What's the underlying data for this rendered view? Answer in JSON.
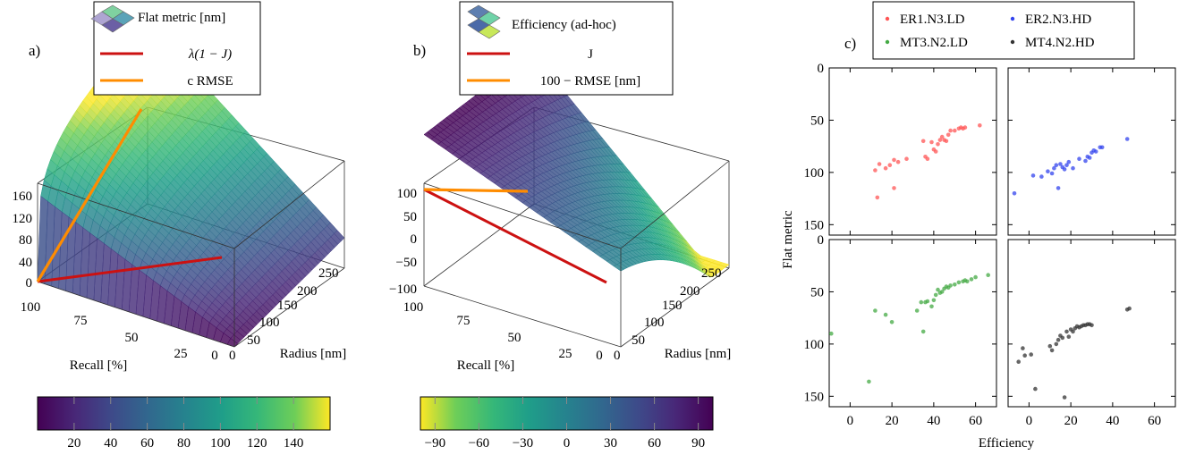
{
  "chart_data": [
    {
      "type": "surface3d",
      "panel_label": "a)",
      "xlabel": "Recall [%]",
      "ylabel": "Radius [nm]",
      "x_ticks": [
        "100",
        "75",
        "50",
        "25",
        "0"
      ],
      "y_ticks": [
        "0",
        "50",
        "100",
        "150",
        "200",
        "250"
      ],
      "z_ticks": [
        "0",
        "40",
        "80",
        "120",
        "160"
      ],
      "x_range": [
        0,
        100
      ],
      "y_range": [
        0,
        280
      ],
      "z_range": [
        0,
        190
      ],
      "legend": [
        {
          "label": "Flat metric [nm]",
          "kind": "surface"
        },
        {
          "label": "λ(1 − J)",
          "kind": "line",
          "color": "#cc1111"
        },
        {
          "label": "c RMSE",
          "kind": "line",
          "color": "#ff8c00"
        }
      ],
      "colorbar": {
        "colormap": "viridis",
        "ticks": [
          "20",
          "40",
          "60",
          "80",
          "100",
          "120",
          "140"
        ],
        "range": [
          0,
          160
        ]
      }
    },
    {
      "type": "surface3d",
      "panel_label": "b)",
      "xlabel": "Recall [%]",
      "ylabel": "Radius [nm]",
      "x_ticks": [
        "100",
        "75",
        "50",
        "25",
        "0"
      ],
      "y_ticks": [
        "0",
        "50",
        "100",
        "150",
        "200",
        "250"
      ],
      "z_ticks": [
        "−100",
        "−50",
        "0",
        "50",
        "100"
      ],
      "x_range": [
        0,
        100
      ],
      "y_range": [
        0,
        280
      ],
      "z_range": [
        -100,
        110
      ],
      "legend": [
        {
          "label": "Efficiency (ad-hoc)",
          "kind": "surface"
        },
        {
          "label": "J",
          "kind": "line",
          "color": "#cc1111"
        },
        {
          "label": "100 − RMSE [nm]",
          "kind": "line",
          "color": "#ff8c00"
        }
      ],
      "colorbar": {
        "colormap": "viridis_r",
        "ticks": [
          "−90",
          "−60",
          "−30",
          "0",
          "30",
          "60",
          "90"
        ],
        "range": [
          -100,
          100
        ]
      }
    },
    {
      "type": "scatter",
      "panel_label": "c)",
      "xlabel": "Efficiency",
      "ylabel": "Flat metric",
      "x_ticks": [
        "0",
        "20",
        "40",
        "60"
      ],
      "y_ticks": [
        "0",
        "50",
        "100",
        "150"
      ],
      "xlim": [
        -10,
        70
      ],
      "ylim": [
        160,
        0
      ],
      "series": [
        {
          "name": "ER1.N3.LD",
          "color": "#ff5555",
          "points": [
            [
              12,
              98
            ],
            [
              14,
              92
            ],
            [
              17,
              96
            ],
            [
              19,
              93
            ],
            [
              21,
              88
            ],
            [
              23,
              90
            ],
            [
              27,
              87
            ],
            [
              13,
              124
            ],
            [
              21,
              115
            ],
            [
              35,
              70
            ],
            [
              39,
              71
            ],
            [
              36,
              85
            ],
            [
              41,
              80
            ],
            [
              42,
              73
            ],
            [
              43,
              69
            ],
            [
              44,
              66
            ],
            [
              45,
              69
            ],
            [
              46,
              70
            ],
            [
              47,
              64
            ],
            [
              48,
              60
            ],
            [
              50,
              60
            ],
            [
              52,
              58
            ],
            [
              53,
              57
            ],
            [
              54,
              58
            ],
            [
              55,
              57
            ],
            [
              37,
              87
            ],
            [
              40,
              78
            ],
            [
              62,
              55
            ]
          ]
        },
        {
          "name": "ER2.N3.HD",
          "color": "#3344ee",
          "points": [
            [
              -7,
              120
            ],
            [
              2,
              103
            ],
            [
              6,
              104
            ],
            [
              9,
              99
            ],
            [
              12,
              96
            ],
            [
              13,
              93
            ],
            [
              14,
              115
            ],
            [
              15,
              92
            ],
            [
              17,
              97
            ],
            [
              18,
              93
            ],
            [
              19,
              90
            ],
            [
              21,
              96
            ],
            [
              24,
              87
            ],
            [
              27,
              89
            ],
            [
              28,
              85
            ],
            [
              29,
              86
            ],
            [
              30,
              81
            ],
            [
              31,
              79
            ],
            [
              32,
              80
            ],
            [
              34,
              76
            ],
            [
              35,
              76
            ],
            [
              47,
              68
            ],
            [
              11,
              101
            ],
            [
              16,
              95
            ]
          ]
        },
        {
          "name": "MT3.N2.LD",
          "color": "#44aa44",
          "points": [
            [
              -9,
              90
            ],
            [
              9,
              136
            ],
            [
              12,
              68
            ],
            [
              17,
              72
            ],
            [
              20,
              79
            ],
            [
              32,
              68
            ],
            [
              34,
              60
            ],
            [
              35,
              88
            ],
            [
              36,
              60
            ],
            [
              37,
              59
            ],
            [
              39,
              64
            ],
            [
              40,
              58
            ],
            [
              41,
              53
            ],
            [
              42,
              48
            ],
            [
              43,
              51
            ],
            [
              44,
              50
            ],
            [
              45,
              47
            ],
            [
              46,
              45
            ],
            [
              47,
              46
            ],
            [
              48,
              44
            ],
            [
              50,
              43
            ],
            [
              52,
              41
            ],
            [
              54,
              40
            ],
            [
              55,
              39
            ],
            [
              56,
              40
            ],
            [
              58,
              38
            ],
            [
              60,
              36
            ],
            [
              66,
              34
            ]
          ]
        },
        {
          "name": "MT4.N2.HD",
          "color": "#333333",
          "points": [
            [
              -5,
              117
            ],
            [
              -3,
              104
            ],
            [
              -2,
              111
            ],
            [
              1,
              110
            ],
            [
              3,
              143
            ],
            [
              10,
              102
            ],
            [
              11,
              106
            ],
            [
              13,
              100
            ],
            [
              14,
              96
            ],
            [
              15,
              92
            ],
            [
              16,
              94
            ],
            [
              17,
              151
            ],
            [
              18,
              88
            ],
            [
              19,
              93
            ],
            [
              20,
              86
            ],
            [
              21,
              88
            ],
            [
              22,
              85
            ],
            [
              23,
              83
            ],
            [
              24,
              84
            ],
            [
              25,
              83
            ],
            [
              26,
              82
            ],
            [
              27,
              82
            ],
            [
              28,
              81
            ],
            [
              29,
              81
            ],
            [
              30,
              82
            ],
            [
              47,
              67
            ],
            [
              48,
              66
            ]
          ]
        }
      ]
    }
  ]
}
